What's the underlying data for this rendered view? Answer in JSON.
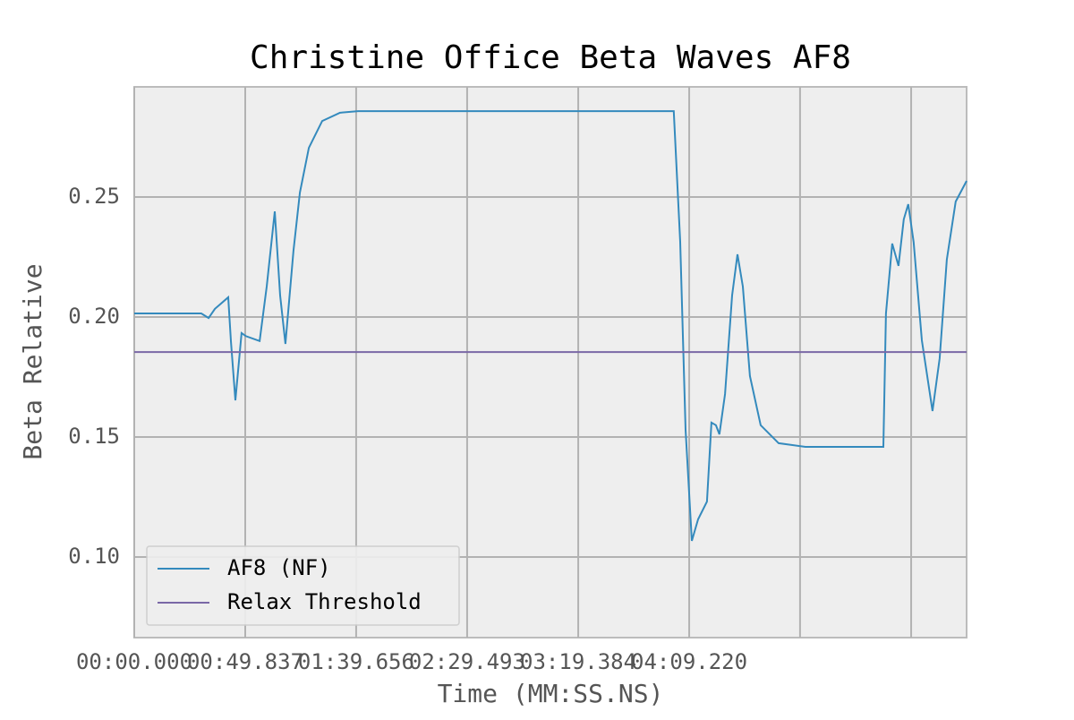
{
  "chart_data": {
    "type": "line",
    "title": "Christine Office Beta Waves AF8",
    "x_label": "Time (MM:SS.NS)",
    "y_label": "Beta Relative",
    "series": [
      {
        "name": "AF8 (NF)",
        "color": "#348abd",
        "x": [
          0,
          30.1,
          33.4,
          36.2,
          42.2,
          43.4,
          45.4,
          48.2,
          50.2,
          56.3,
          59.5,
          63.1,
          65.5,
          67.9,
          71.5,
          74.4,
          78.4,
          84.4,
          92.4,
          100.5,
          242.3,
          245.2,
          247.6,
          250.4,
          253.2,
          257.2,
          259.2,
          261.2,
          262.8,
          265.3,
          268.5,
          270.9,
          273.3,
          276.5,
          281.3,
          289.4,
          301.4,
          336.4,
          337.6,
          340.4,
          343.2,
          345.6,
          347.6,
          350.0,
          353.7,
          358.5,
          361.7,
          364.9,
          368.9,
          373.8
        ],
        "values": [
          0.2015,
          0.2015,
          0.1996,
          0.2034,
          0.2082,
          0.19,
          0.1653,
          0.1933,
          0.192,
          0.19,
          0.2127,
          0.244,
          0.209,
          0.1888,
          0.2276,
          0.2519,
          0.2705,
          0.2817,
          0.2851,
          0.2858,
          0.2858,
          0.2313,
          0.153,
          0.1067,
          0.1157,
          0.1231,
          0.156,
          0.1549,
          0.1511,
          0.1679,
          0.209,
          0.2261,
          0.2127,
          0.1754,
          0.1549,
          0.1474,
          0.1459,
          0.1459,
          0.2015,
          0.2306,
          0.2213,
          0.2407,
          0.247,
          0.2313,
          0.1903,
          0.1608,
          0.1828,
          0.2239,
          0.2481,
          0.2567
        ]
      },
      {
        "name": "Relax Threshold",
        "color": "#7a68a6",
        "x": [
          0,
          373.8
        ],
        "values": [
          0.1854,
          0.1854
        ]
      }
    ],
    "xlim": [
      0,
      373.8
    ],
    "ylim": [
      0.0664,
      0.2959
    ],
    "xticks": [
      {
        "value": 0,
        "label": "00:00.000"
      },
      {
        "value": 49.837,
        "label": "00:49.837"
      },
      {
        "value": 99.656,
        "label": "01:39.656"
      },
      {
        "value": 149.493,
        "label": "02:29.493"
      },
      {
        "value": 199.384,
        "label": "03:19.384"
      },
      {
        "value": 249.22,
        "label": "04:09.220"
      },
      {
        "value": 299.0,
        "label": null
      },
      {
        "value": 348.9,
        "label": null
      }
    ],
    "yticks": [
      {
        "value": 0.1,
        "label": "0.10"
      },
      0.15,
      {
        "value": 0.2,
        "label": "0.20"
      },
      0.25
    ],
    "grid": true,
    "legend": "lower left"
  }
}
